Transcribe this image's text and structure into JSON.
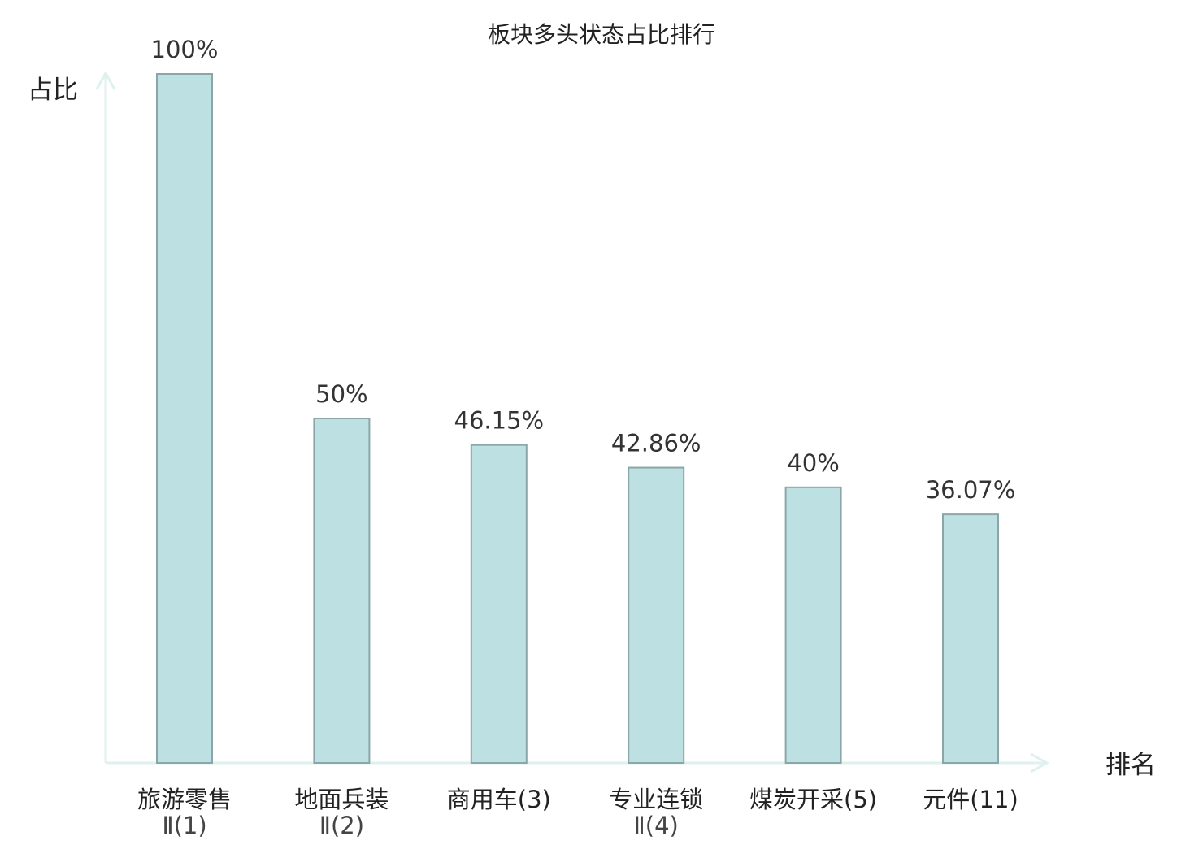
{
  "chart_data": {
    "type": "bar",
    "title": "板块多头状态占比排行",
    "xlabel": "排名",
    "ylabel": "占比",
    "ylim": [
      0,
      100
    ],
    "unit": "%",
    "categories": [
      {
        "lines": [
          "旅游零售",
          "Ⅱ(1)"
        ],
        "highlight": false
      },
      {
        "lines": [
          "地面兵装",
          "Ⅱ(2)"
        ],
        "highlight": false
      },
      {
        "lines": [
          "商用车(3)"
        ],
        "highlight": false
      },
      {
        "lines": [
          "专业连锁",
          "Ⅱ(4)"
        ],
        "highlight": false
      },
      {
        "lines": [
          "煤炭开采(5)"
        ],
        "highlight": false
      },
      {
        "lines": [
          "元件(11)"
        ],
        "highlight": true
      }
    ],
    "values": [
      100,
      50,
      46.15,
      42.86,
      40,
      36.07
    ],
    "value_labels": [
      "100%",
      "50%",
      "46.15%",
      "42.86%",
      "40%",
      "36.07%"
    ],
    "grid": false,
    "colors": {
      "bar_fill": "#bde0e2",
      "bar_stroke": "#8aa6a9",
      "axis": "#dff1ef",
      "highlight_text": "#e01010",
      "text": "#222222"
    }
  }
}
